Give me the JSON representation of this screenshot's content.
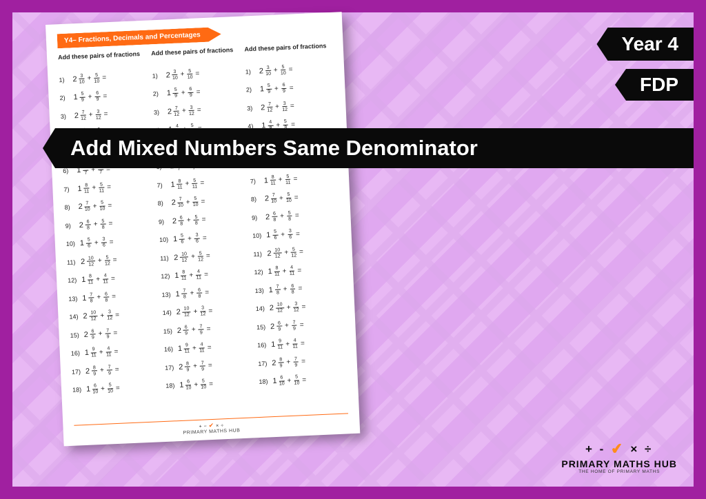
{
  "frame": {
    "outer_color": "#a020a0",
    "bg_light": "#e8b8f4",
    "bg_dark": "#dca8ec"
  },
  "labels": {
    "year": "Year 4",
    "topic": "FDP",
    "title": "Add Mixed Numbers Same Denominator",
    "bg": "#0a0a0a",
    "fg": "#ffffff"
  },
  "worksheet": {
    "banner": "Y4– Fractions, Decimals and Percentages",
    "banner_color": "#ff6a13",
    "column_heading": "Add these pairs of fractions",
    "footer_brand": "PRIMARY MATHS HUB",
    "problems": [
      {
        "n": "1)",
        "w": "2",
        "a": [
          "3",
          "10"
        ],
        "b": [
          "5",
          "10"
        ]
      },
      {
        "n": "2)",
        "w": "1",
        "a": [
          "5",
          "9"
        ],
        "b": [
          "6",
          "9"
        ]
      },
      {
        "n": "3)",
        "w": "2",
        "a": [
          "7",
          "12"
        ],
        "b": [
          "3",
          "12"
        ]
      },
      {
        "n": "4)",
        "w": "1",
        "a": [
          "4",
          "8"
        ],
        "b": [
          "5",
          "8"
        ]
      },
      {
        "n": "5)",
        "w": "2",
        "a": [
          "6",
          "9"
        ],
        "b": [
          "4",
          "9"
        ]
      },
      {
        "n": "6)",
        "w": "1",
        "a": [
          "5",
          "7"
        ],
        "b": [
          "4",
          "7"
        ]
      },
      {
        "n": "7)",
        "w": "1",
        "a": [
          "8",
          "11"
        ],
        "b": [
          "5",
          "11"
        ]
      },
      {
        "n": "8)",
        "w": "2",
        "a": [
          "7",
          "10"
        ],
        "b": [
          "5",
          "10"
        ]
      },
      {
        "n": "9)",
        "w": "2",
        "a": [
          "6",
          "8"
        ],
        "b": [
          "5",
          "8"
        ]
      },
      {
        "n": "10)",
        "w": "1",
        "a": [
          "5",
          "6"
        ],
        "b": [
          "3",
          "6"
        ]
      },
      {
        "n": "11)",
        "w": "2",
        "a": [
          "10",
          "12"
        ],
        "b": [
          "5",
          "12"
        ]
      },
      {
        "n": "12)",
        "w": "1",
        "a": [
          "8",
          "11"
        ],
        "b": [
          "4",
          "11"
        ]
      },
      {
        "n": "13)",
        "w": "1",
        "a": [
          "7",
          "8"
        ],
        "b": [
          "6",
          "8"
        ]
      },
      {
        "n": "14)",
        "w": "2",
        "a": [
          "10",
          "12"
        ],
        "b": [
          "3",
          "12"
        ]
      },
      {
        "n": "15)",
        "w": "2",
        "a": [
          "6",
          "9"
        ],
        "b": [
          "7",
          "9"
        ]
      },
      {
        "n": "16)",
        "w": "1",
        "a": [
          "9",
          "11"
        ],
        "b": [
          "4",
          "11"
        ]
      },
      {
        "n": "17)",
        "w": "2",
        "a": [
          "8",
          "9"
        ],
        "b": [
          "7",
          "9"
        ]
      },
      {
        "n": "18)",
        "w": "1",
        "a": [
          "6",
          "10"
        ],
        "b": [
          "5",
          "10"
        ]
      }
    ]
  },
  "logo": {
    "name": "PRIMARY MATHS HUB",
    "tagline": "THE HOME OF PRIMARY MATHS",
    "accent": "#ff8c1a"
  }
}
